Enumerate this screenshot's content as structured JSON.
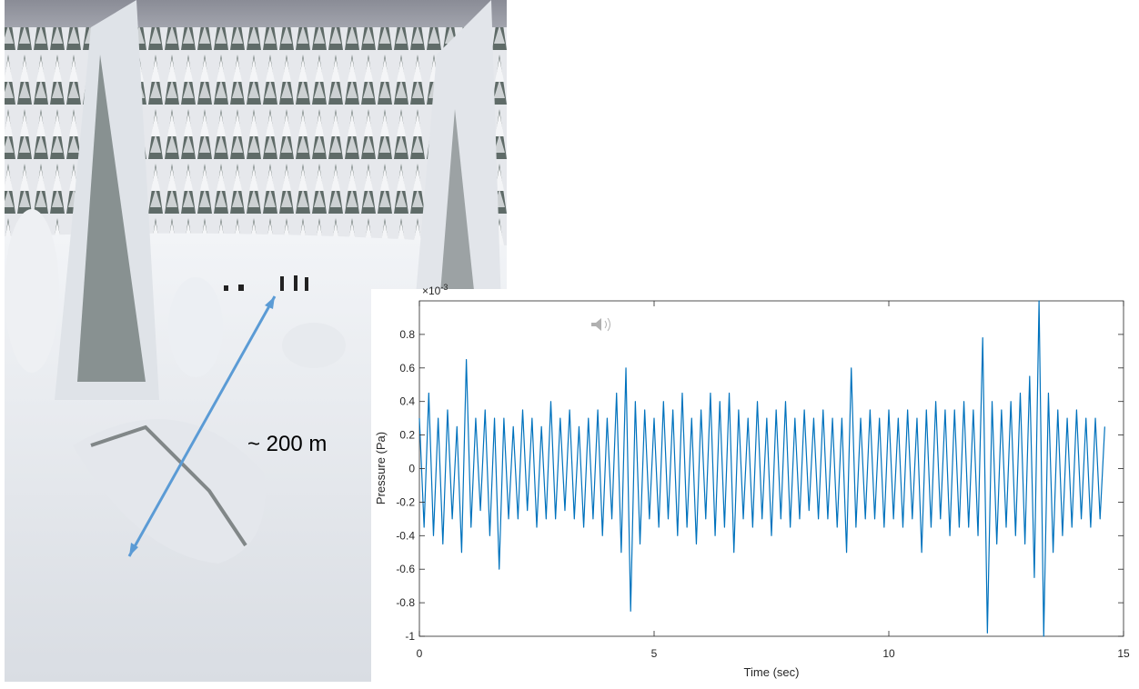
{
  "photo_annotation": "~ 200 m",
  "chart_data": {
    "type": "line",
    "x_label": "Time (sec)",
    "y_label": "Pressure (Pa)",
    "y_exponent_base": "×10",
    "y_exponent": "-3",
    "xlim": [
      0,
      15
    ],
    "xticks": [
      0,
      5,
      10,
      15
    ],
    "ylim": [
      -1,
      1
    ],
    "yticks": [
      -1,
      -0.8,
      -0.6,
      -0.4,
      -0.2,
      0,
      0.2,
      0.4,
      0.6,
      0.8
    ],
    "x": [
      0,
      0.1,
      0.2,
      0.3,
      0.4,
      0.5,
      0.6,
      0.7,
      0.8,
      0.9,
      1,
      1.1,
      1.2,
      1.3,
      1.4,
      1.5,
      1.6,
      1.7,
      1.8,
      1.9,
      2,
      2.1,
      2.2,
      2.3,
      2.4,
      2.5,
      2.6,
      2.7,
      2.8,
      2.9,
      3,
      3.1,
      3.2,
      3.3,
      3.4,
      3.5,
      3.6,
      3.7,
      3.8,
      3.9,
      4,
      4.1,
      4.2,
      4.3,
      4.4,
      4.5,
      4.6,
      4.7,
      4.8,
      4.9,
      5,
      5.1,
      5.2,
      5.3,
      5.4,
      5.5,
      5.6,
      5.7,
      5.8,
      5.9,
      6,
      6.1,
      6.2,
      6.3,
      6.4,
      6.5,
      6.6,
      6.7,
      6.8,
      6.9,
      7,
      7.1,
      7.2,
      7.3,
      7.4,
      7.5,
      7.6,
      7.7,
      7.8,
      7.9,
      8,
      8.1,
      8.2,
      8.3,
      8.4,
      8.5,
      8.6,
      8.7,
      8.8,
      8.9,
      9,
      9.1,
      9.2,
      9.3,
      9.4,
      9.5,
      9.6,
      9.7,
      9.8,
      9.9,
      10,
      10.1,
      10.2,
      10.3,
      10.4,
      10.5,
      10.6,
      10.7,
      10.8,
      10.9,
      11,
      11.1,
      11.2,
      11.3,
      11.4,
      11.5,
      11.6,
      11.7,
      11.8,
      11.9,
      12,
      12.1,
      12.2,
      12.3,
      12.4,
      12.5,
      12.6,
      12.7,
      12.8,
      12.9,
      13,
      13.1,
      13.2,
      13.3,
      13.4,
      13.5,
      13.6,
      13.7,
      13.8,
      13.9,
      14,
      14.1,
      14.2,
      14.3,
      14.4,
      14.5,
      14.6
    ],
    "series": [
      {
        "color": "#0072bd",
        "values": [
          0.3,
          -0.35,
          0.45,
          -0.4,
          0.3,
          -0.45,
          0.35,
          -0.3,
          0.25,
          -0.5,
          0.65,
          -0.35,
          0.3,
          -0.25,
          0.35,
          -0.4,
          0.3,
          -0.6,
          0.3,
          -0.3,
          0.25,
          -0.3,
          0.35,
          -0.25,
          0.3,
          -0.35,
          0.25,
          -0.3,
          0.4,
          -0.3,
          0.3,
          -0.25,
          0.35,
          -0.3,
          0.25,
          -0.35,
          0.3,
          -0.3,
          0.35,
          -0.4,
          0.3,
          -0.3,
          0.45,
          -0.5,
          0.6,
          -0.85,
          0.4,
          -0.45,
          0.35,
          -0.3,
          0.3,
          -0.35,
          0.4,
          -0.3,
          0.35,
          -0.4,
          0.45,
          -0.35,
          0.3,
          -0.45,
          0.35,
          -0.3,
          0.45,
          -0.4,
          0.4,
          -0.35,
          0.45,
          -0.5,
          0.35,
          -0.3,
          0.3,
          -0.35,
          0.4,
          -0.3,
          0.3,
          -0.4,
          0.35,
          -0.3,
          0.4,
          -0.35,
          0.3,
          -0.3,
          0.35,
          -0.25,
          0.3,
          -0.3,
          0.35,
          -0.3,
          0.3,
          -0.35,
          0.3,
          -0.5,
          0.6,
          -0.35,
          0.3,
          -0.3,
          0.35,
          -0.3,
          0.3,
          -0.35,
          0.35,
          -0.3,
          0.3,
          -0.35,
          0.35,
          -0.3,
          0.3,
          -0.5,
          0.35,
          -0.35,
          0.4,
          -0.3,
          0.35,
          -0.4,
          0.35,
          -0.35,
          0.4,
          -0.35,
          0.35,
          -0.4,
          0.78,
          -0.98,
          0.4,
          -0.45,
          0.35,
          -0.35,
          0.4,
          -0.4,
          0.45,
          -0.45,
          0.55,
          -0.65,
          1,
          -1,
          0.45,
          -0.5,
          0.35,
          -0.4,
          0.3,
          -0.35,
          0.35,
          -0.3,
          0.3,
          -0.35,
          0.3,
          -0.3,
          0.25
        ]
      }
    ]
  }
}
